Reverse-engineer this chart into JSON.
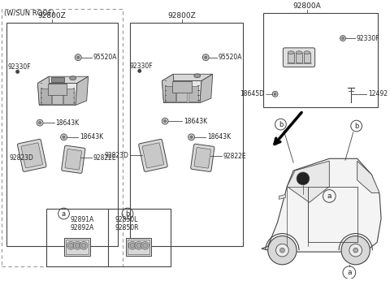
{
  "bg": "#ffffff",
  "lc": "#444444",
  "tc": "#222222",
  "fig_w": 4.8,
  "fig_h": 3.46,
  "dpi": 100,
  "sunroof_label": "(W/SUN ROOF)",
  "left_label": "92800Z",
  "mid_label": "92800Z",
  "right_label": "92800A",
  "parts": {
    "92330F": "92330F",
    "95520A": "95520A",
    "18643K": "18643K",
    "92823D": "92823D",
    "92822E": "92822E",
    "18645D": "18645D",
    "12492": "12492",
    "92891A": "92891A",
    "92892A": "92892A",
    "92850L": "92850L",
    "92850R": "92850R"
  }
}
